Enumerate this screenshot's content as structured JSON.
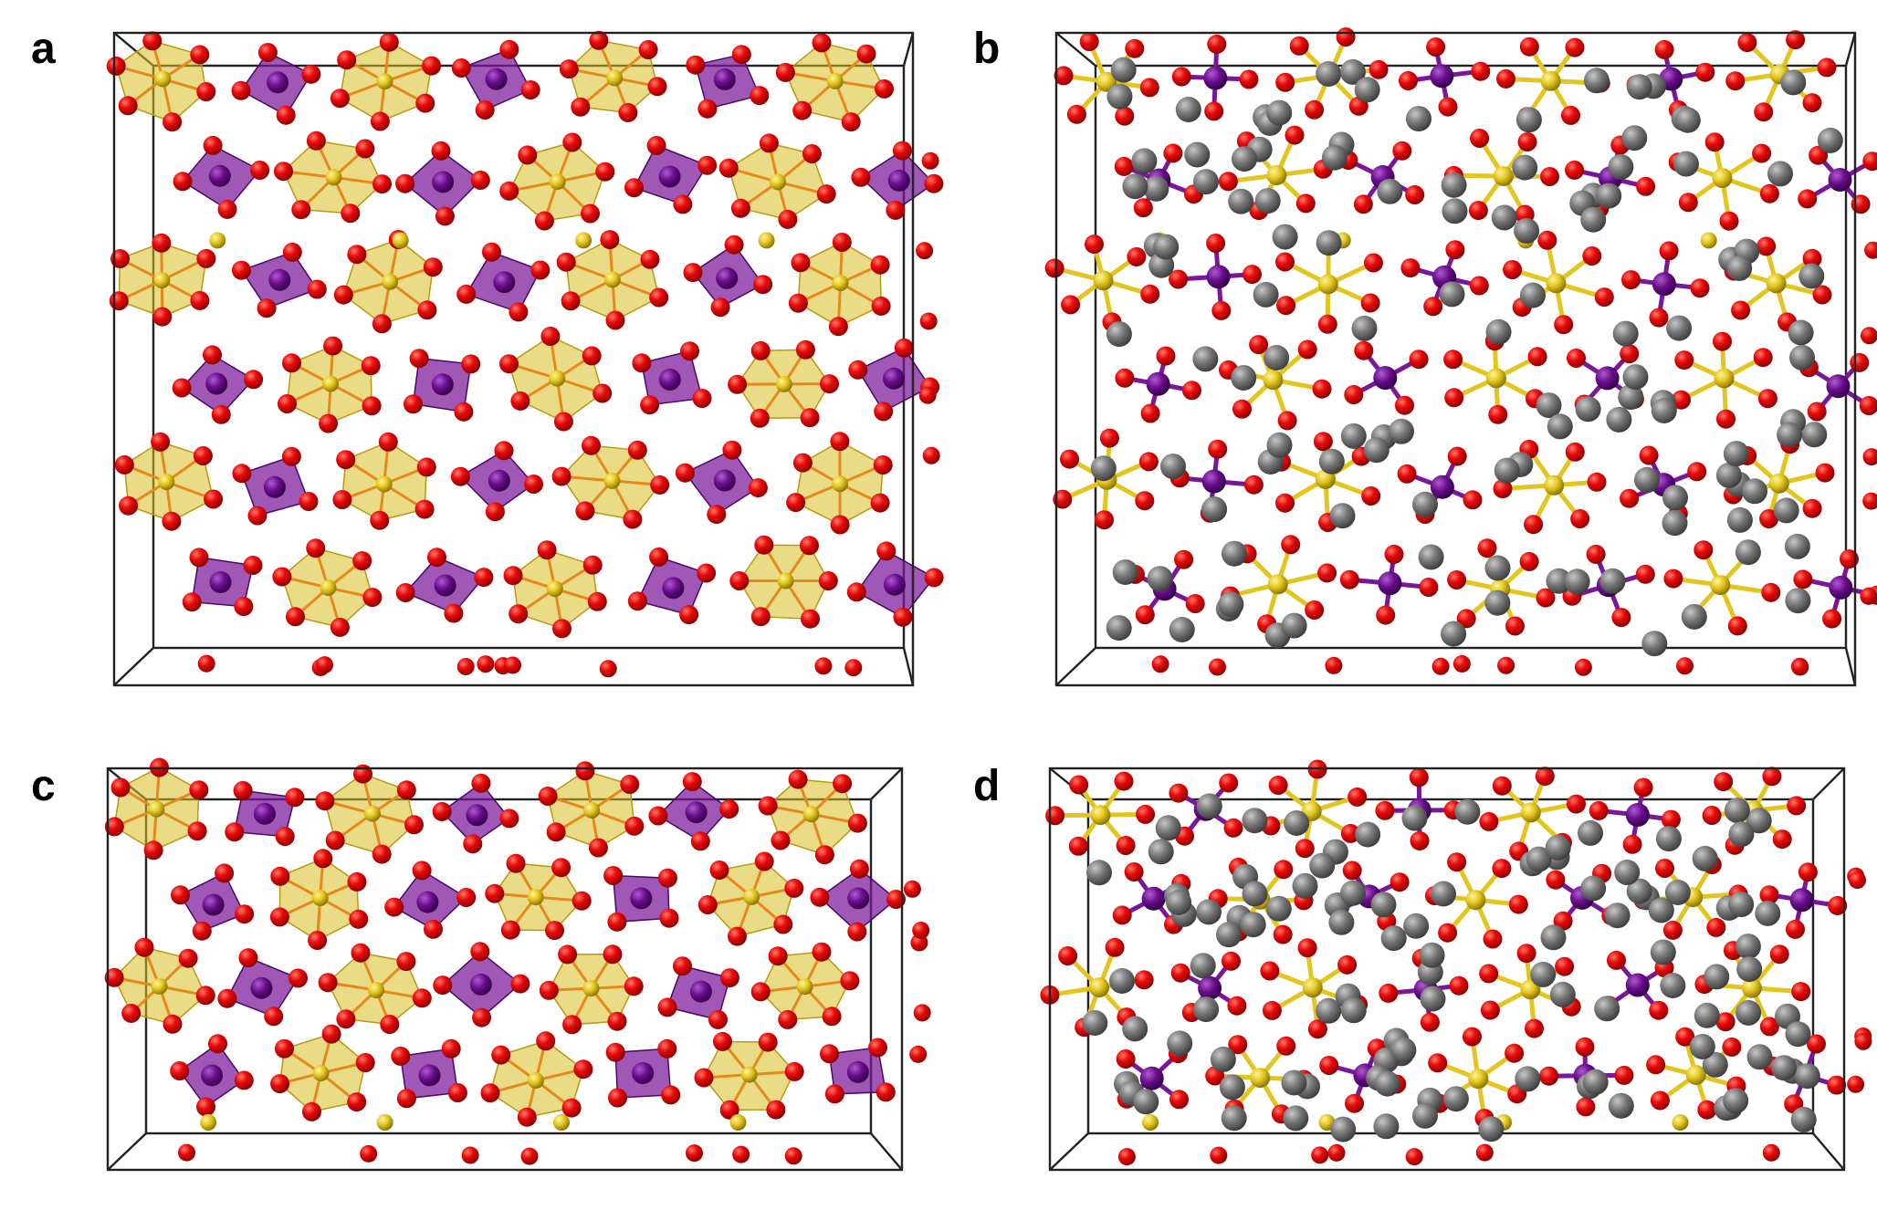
{
  "figure": {
    "panels": [
      {
        "label": "a",
        "layout": "tall",
        "style": "polyhedra",
        "grey_atoms": false
      },
      {
        "label": "b",
        "layout": "tall",
        "style": "ball-stick",
        "grey_atoms": true
      },
      {
        "label": "c",
        "layout": "short",
        "style": "polyhedra",
        "grey_atoms": false
      },
      {
        "label": "d",
        "layout": "short",
        "style": "ball-stick",
        "grey_atoms": true
      }
    ],
    "colors": {
      "oxygen": "#e8090a",
      "purple_center": "#6a0e8c",
      "yellow_center": "#e2c51e",
      "yellow_polyhedron": "#d9be24",
      "purple_polyhedron": "#7a1799",
      "grey_atom": "#777777",
      "cell_edge": "#222222"
    }
  }
}
